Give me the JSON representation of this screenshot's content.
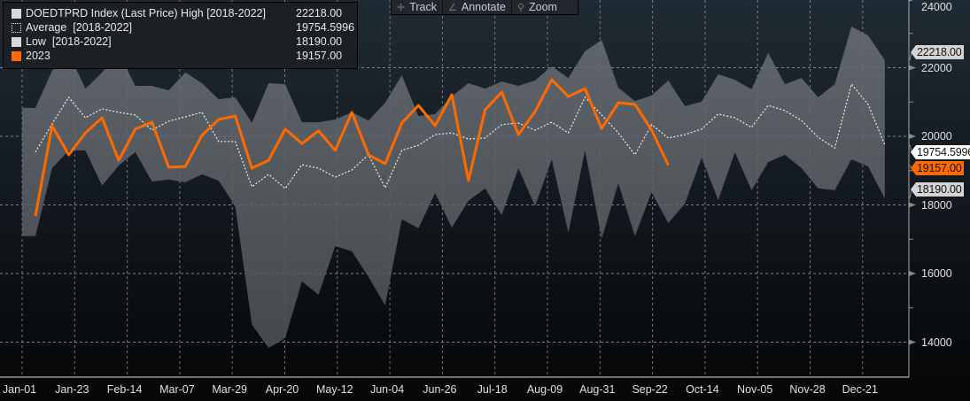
{
  "toolbar": {
    "track": "Track",
    "annotate": "Annotate",
    "zoom": "Zoom",
    "icons": [
      "crosshair-icon",
      "pencil-icon",
      "magnifier-icon"
    ]
  },
  "legend": [
    {
      "label": "DOEDTPRD Index (Last Price) High [2018-2022]",
      "value": "22218.00",
      "color": "#d9d9d9"
    },
    {
      "label": "Average  [2018-2022]",
      "value": "19754.5996",
      "color": "#ffffff"
    },
    {
      "label": "Low  [2018-2022]",
      "value": "18190.00",
      "color": "#d9d9d9"
    },
    {
      "label": "2023",
      "value": "19157.00",
      "color": "#ff6a00"
    }
  ],
  "badges": {
    "high": "22218.00",
    "average": "19754.5996",
    "current": "19157.00",
    "low": "18190.00"
  },
  "chart_data": {
    "type": "line",
    "title": "DOEDTPRD Index (Last Price)",
    "x_unit": "week of year",
    "x_tick_labels": [
      "Jan-01",
      "Jan-23",
      "Feb-14",
      "Mar-07",
      "Mar-29",
      "Apr-20",
      "May-12",
      "Jun-04",
      "Jun-26",
      "Jul-18",
      "Aug-09",
      "Aug-31",
      "Sep-22",
      "Oct-14",
      "Nov-05",
      "Nov-28",
      "Dec-21"
    ],
    "y_ticks": [
      14000,
      16000,
      18000,
      20000,
      22000,
      24000
    ],
    "y_tick_labels": [
      "14000",
      "16000",
      "18000",
      "20000",
      "22000",
      "24000"
    ],
    "ylim": [
      13000,
      24150
    ],
    "grid": true,
    "legend_position": "top-left",
    "series": [
      {
        "name": "High [2018-2022]",
        "type": "band-upper",
        "values": [
          20830,
          21910,
          22430,
          21390,
          21860,
          22430,
          21470,
          21470,
          21340,
          21860,
          21550,
          21080,
          21140,
          20390,
          21550,
          21520,
          20410,
          20410,
          20490,
          20700,
          20460,
          20980,
          21780,
          20590,
          20650,
          21160,
          21550,
          21390,
          21600,
          21470,
          21630,
          22040,
          21700,
          22480,
          22810,
          21420,
          21030,
          21190,
          21630,
          20880,
          21010,
          21810,
          21650,
          21370,
          22430,
          21520,
          21700,
          21140,
          21520,
          23200,
          22940,
          22218
        ]
      },
      {
        "name": "Low [2018-2022]",
        "type": "band-lower",
        "values": [
          17090,
          19070,
          19590,
          19590,
          18560,
          19150,
          19540,
          18680,
          18740,
          18660,
          18890,
          18710,
          17960,
          14510,
          13830,
          14120,
          15770,
          15380,
          16800,
          16650,
          15900,
          15070,
          17580,
          17320,
          18350,
          17340,
          18120,
          18480,
          17700,
          19070,
          17960,
          19330,
          17190,
          19590,
          17010,
          18630,
          17090,
          18370,
          17470,
          18040,
          19380,
          18140,
          19540,
          18430,
          19250,
          19460,
          19070,
          18480,
          18430,
          19330,
          19120,
          18190
        ]
      },
      {
        "name": "Average [2018-2022]",
        "type": "dotted-line",
        "values": [
          19540,
          20360,
          21140,
          20540,
          20800,
          20700,
          20620,
          20180,
          20440,
          20570,
          20700,
          19850,
          19850,
          18530,
          18890,
          18480,
          19170,
          19070,
          18810,
          19020,
          19460,
          18500,
          19590,
          19740,
          20050,
          20100,
          19920,
          19950,
          20340,
          20390,
          20180,
          20410,
          20100,
          21140,
          20620,
          20100,
          19460,
          20340,
          19950,
          20050,
          20210,
          20650,
          20540,
          20260,
          20900,
          20750,
          20460,
          19970,
          19660,
          21520,
          20930,
          19754.5996
        ]
      },
      {
        "name": "2023",
        "type": "line",
        "color": "#ff6a00",
        "values": [
          17680,
          20310,
          19460,
          20100,
          20540,
          19300,
          20210,
          20410,
          19100,
          19120,
          20030,
          20490,
          20590,
          19070,
          19300,
          20210,
          19790,
          20160,
          19590,
          20700,
          19460,
          19200,
          20390,
          20900,
          20310,
          21210,
          18710,
          20770,
          21290,
          20050,
          20720,
          21650,
          21160,
          21390,
          20230,
          20980,
          20930,
          20180,
          19157
        ]
      }
    ]
  }
}
